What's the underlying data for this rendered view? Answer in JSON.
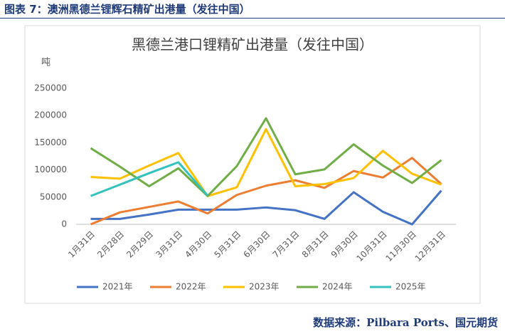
{
  "header": {
    "title": "图表 7：澳洲黑德兰锂辉石精矿出港量（发往中国）"
  },
  "chart_data": {
    "type": "line",
    "title": "黑德兰港口锂精矿出港量（发往中国）",
    "y_label": "吨",
    "categories": [
      "1月31日",
      "2月28日",
      "2月29日",
      "3月31日",
      "4月30日",
      "5月31日",
      "6月30日",
      "7月31日",
      "8月31日",
      "9月30日",
      "10月31日",
      "11月30日",
      "12月31日"
    ],
    "series": [
      {
        "name": "2021年",
        "color": "#4472c4",
        "values": [
          10000,
          10000,
          18000,
          27000,
          27000,
          27000,
          31000,
          26000,
          10000,
          59000,
          23000,
          0,
          62000
        ]
      },
      {
        "name": "2022年",
        "color": "#ed7d31",
        "values": [
          0,
          22000,
          32000,
          42000,
          20000,
          54000,
          71000,
          81000,
          67000,
          98000,
          86000,
          122000,
          74000
        ]
      },
      {
        "name": "2023年",
        "color": "#ffc000",
        "values": [
          87000,
          84000,
          108000,
          131000,
          52000,
          68000,
          175000,
          70000,
          74000,
          85000,
          135000,
          93000,
          73000
        ]
      },
      {
        "name": "2024年",
        "color": "#70ad47",
        "values": [
          140000,
          106000,
          70000,
          103000,
          52000,
          107000,
          195000,
          92000,
          101000,
          147000,
          108000,
          76000,
          118000
        ]
      },
      {
        "name": "2025年",
        "color": "#33c2bd",
        "values": [
          52000,
          73000,
          94000,
          114000,
          53000,
          null,
          null,
          null,
          null,
          null,
          null,
          null,
          null
        ]
      }
    ],
    "ylim": [
      0,
      250000
    ],
    "yticks": [
      0,
      50000,
      100000,
      150000,
      200000,
      250000
    ],
    "grid": false,
    "legend": "bottom"
  },
  "footer": {
    "source": "数据来源：Pilbara Ports、国元期货"
  }
}
